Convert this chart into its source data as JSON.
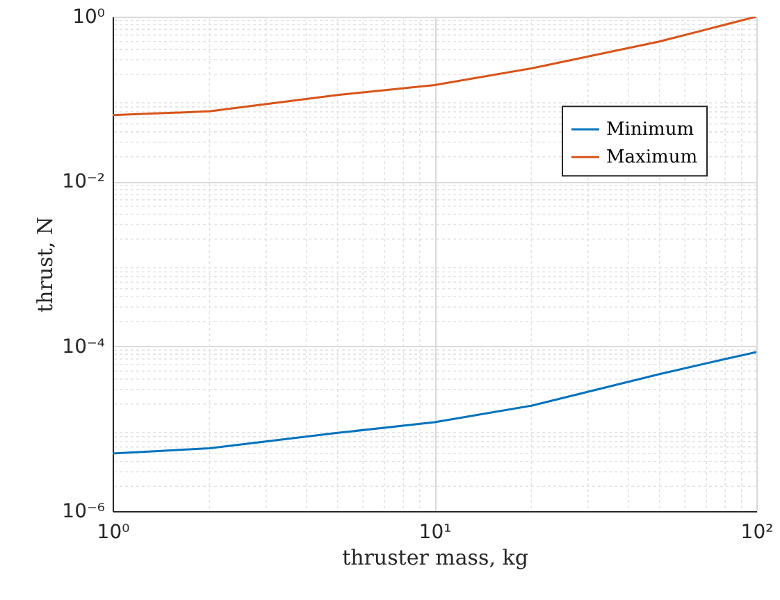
{
  "chart_data": {
    "type": "line",
    "xlabel": "thruster mass, kg",
    "ylabel": "thrust, N",
    "log": "xy",
    "grid": true,
    "legend": "right",
    "marker": "none",
    "line_style": "solid",
    "xlim": [
      1,
      100
    ],
    "xticks": [
      {
        "value": 1,
        "label": "10⁰"
      },
      {
        "value": 10,
        "label": "10¹"
      },
      {
        "value": 100,
        "label": "10²"
      }
    ],
    "ylim": [
      1e-06,
      1
    ],
    "yticks": [
      {
        "value": 1e-06,
        "label": "10⁻⁶"
      },
      {
        "value": 0.0001,
        "label": "10⁻⁴"
      },
      {
        "value": 0.01,
        "label": "10⁻²"
      },
      {
        "value": 1,
        "label": "10⁰"
      }
    ],
    "x": [
      1,
      2,
      5,
      10,
      20,
      50,
      80,
      100
    ],
    "series": [
      {
        "name": "Minimum",
        "color": "#0072bd",
        "values": [
          5e-06,
          5.8e-06,
          8.9e-06,
          1.2e-05,
          1.9e-05,
          4.6e-05,
          7e-05,
          8.5e-05
        ]
      },
      {
        "name": "Maximum",
        "color": "#d95319",
        "values": [
          0.064,
          0.071,
          0.112,
          0.148,
          0.236,
          0.5,
          0.8,
          1.0
        ]
      }
    ]
  }
}
